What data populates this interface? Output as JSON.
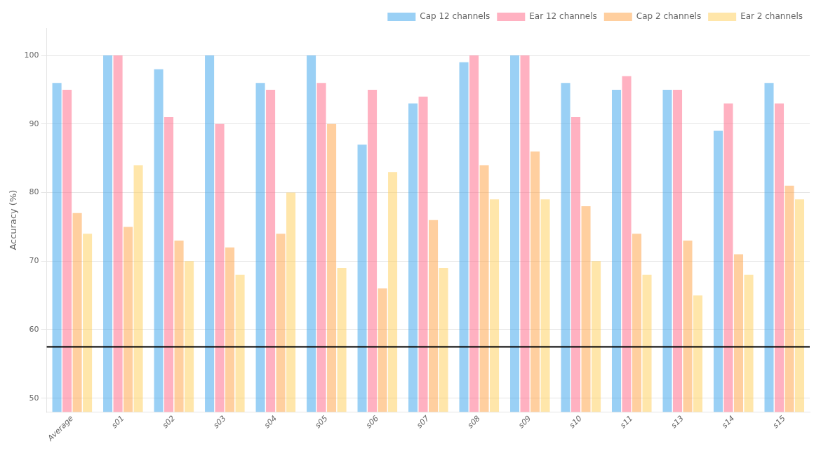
{
  "chart_data": {
    "type": "bar",
    "categories": [
      "Average",
      "s01",
      "s02",
      "s03",
      "s04",
      "s05",
      "s06",
      "s07",
      "s08",
      "s09",
      "s10",
      "s11",
      "s13",
      "s14",
      "s15"
    ],
    "series": [
      {
        "name": "Cap 12 channels",
        "values": [
          96,
          100,
          98,
          100,
          96,
          100,
          87,
          93,
          99,
          100,
          96,
          95,
          95,
          89,
          96
        ]
      },
      {
        "name": "Ear 12 channels",
        "values": [
          95,
          100,
          91,
          90,
          95,
          96,
          95,
          94,
          100,
          100,
          91,
          97,
          95,
          93,
          93
        ]
      },
      {
        "name": "Cap 2 channels",
        "values": [
          77,
          75,
          73,
          72,
          74,
          90,
          66,
          76,
          84,
          86,
          78,
          74,
          73,
          71,
          81
        ]
      },
      {
        "name": "Ear 2 channels",
        "values": [
          74,
          84,
          70,
          68,
          80,
          69,
          83,
          69,
          79,
          79,
          70,
          68,
          65,
          68,
          79
        ]
      }
    ],
    "y_label": "Accuracy (%)",
    "ylim": [
      48,
      104
    ],
    "yticks": [
      50,
      60,
      70,
      80,
      90,
      100
    ],
    "reference_line": 57.5,
    "grid": true,
    "legend": "upper right"
  }
}
